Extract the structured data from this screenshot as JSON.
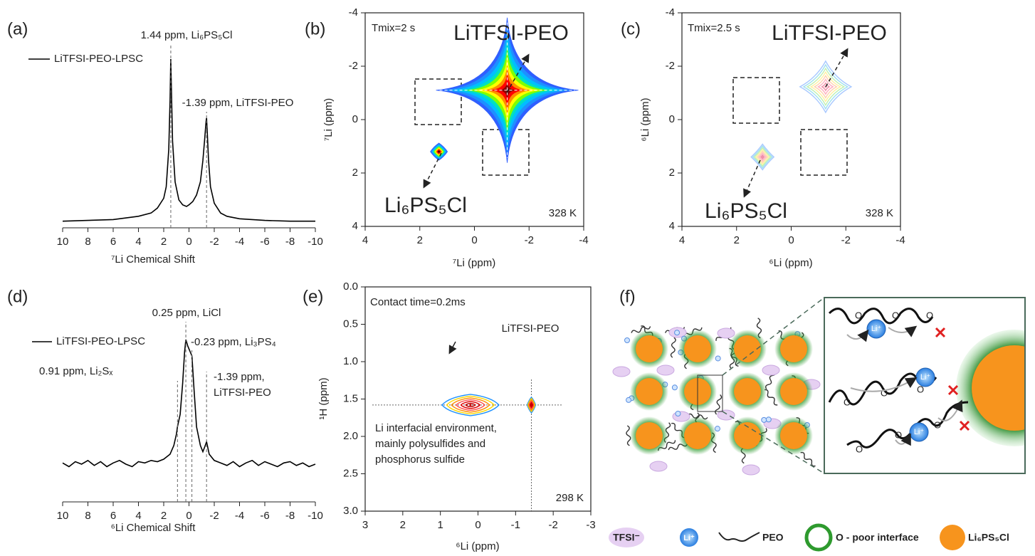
{
  "chart_data": [
    {
      "type": "spectrum",
      "label": "(a)",
      "xlabel": "⁷Li Chemical Shift",
      "xlim": [
        10,
        -10
      ],
      "xticks": [
        10,
        8,
        6,
        4,
        2,
        0,
        -2,
        -4,
        -6,
        -8,
        -10
      ],
      "x": [
        10,
        8,
        6,
        4,
        3,
        2.5,
        2,
        1.8,
        1.6,
        1.5,
        1.44,
        1.38,
        1.3,
        1.1,
        0.8,
        0.5,
        0.2,
        0,
        -0.3,
        -0.6,
        -0.9,
        -1.1,
        -1.25,
        -1.35,
        -1.39,
        -1.45,
        -1.55,
        -1.7,
        -2,
        -2.5,
        -3,
        -4,
        -6,
        -8,
        -10
      ],
      "series": [
        {
          "name": "LiTFSI-PEO-LPSC",
          "color": "#000000",
          "values": [
            1,
            1.5,
            2,
            4,
            6,
            9,
            15,
            22,
            45,
            75,
            100,
            78,
            50,
            25,
            14,
            11,
            10,
            11,
            13,
            17,
            25,
            38,
            52,
            62,
            64,
            55,
            38,
            22,
            12,
            6,
            4,
            2.5,
            1.5,
            1,
            1
          ]
        }
      ],
      "annotations": [
        {
          "x": 1.44,
          "text": "1.44 ppm, Li₆PS₅Cl"
        },
        {
          "x": -1.39,
          "text": "-1.39 ppm, LiTFSI-PEO"
        }
      ]
    },
    {
      "type": "contour",
      "label": "(b)",
      "xlabel": "⁷Li (ppm)",
      "ylabel": "⁷Li (ppm)",
      "xlim": [
        4,
        -4
      ],
      "ylim": [
        4,
        -4
      ],
      "xticks": [
        4,
        2,
        0,
        -2,
        -4
      ],
      "yticks": [
        -4,
        -2,
        0,
        2,
        4
      ],
      "filled": true,
      "colors": [
        "#2f5fff",
        "#1e90ff",
        "#00bfff",
        "#00e0c0",
        "#7fff00",
        "#ffff00",
        "#ff8c00",
        "#ff0000",
        "#8b0000"
      ],
      "notes": [
        "Tmix=2 s",
        "328 K"
      ],
      "series": [
        {
          "name": "LiTFSI-PEO",
          "x": [
            -1.2
          ],
          "values": [
            -1.1
          ]
        },
        {
          "name": "Li₆PS₅Cl",
          "x": [
            1.3
          ],
          "values": [
            1.2
          ]
        }
      ]
    },
    {
      "type": "contour",
      "label": "(c)",
      "xlabel": "⁶Li (ppm)",
      "ylabel": "⁶Li (ppm)",
      "xlim": [
        4,
        -4
      ],
      "ylim": [
        4,
        -4
      ],
      "xticks": [
        4,
        2,
        0,
        -2,
        -4
      ],
      "yticks": [
        -4,
        -2,
        0,
        2,
        4
      ],
      "filled": false,
      "colors": [
        "#a8c8ff",
        "#a0e0f0",
        "#c0f0b0",
        "#fff0a0",
        "#ffd0b0",
        "#ffb0c0",
        "#f090a8"
      ],
      "notes": [
        "Tmix=2.5 s",
        "328 K"
      ],
      "series": [
        {
          "name": "LiTFSI-PEO",
          "x": [
            -1.26
          ],
          "values": [
            -1.23
          ]
        },
        {
          "name": "Li₆PS₅Cl",
          "x": [
            1.05
          ],
          "values": [
            1.4
          ]
        }
      ]
    },
    {
      "type": "spectrum",
      "label": "(d)",
      "xlabel": "⁶Li Chemical Shift",
      "xlim": [
        10,
        -10
      ],
      "xticks": [
        10,
        8,
        6,
        4,
        2,
        0,
        -2,
        -4,
        -6,
        -8,
        -10
      ],
      "x": [
        10,
        9.5,
        9,
        8.5,
        8,
        7.5,
        7,
        6.5,
        6,
        5.5,
        5,
        4.5,
        4,
        3.5,
        3,
        2.5,
        2,
        1.5,
        1.2,
        1,
        0.91,
        0.7,
        0.5,
        0.35,
        0.25,
        0.1,
        -0.1,
        -0.23,
        -0.4,
        -0.6,
        -0.9,
        -1.1,
        -1.25,
        -1.39,
        -1.6,
        -2,
        -2.5,
        -3,
        -3.5,
        -4,
        -4.5,
        -5,
        -5.5,
        -6,
        -6.5,
        -7,
        -7.5,
        -8,
        -8.5,
        -9,
        -9.5,
        -10
      ],
      "series": [
        {
          "name": "LiTFSI-PEO-LPSC",
          "color": "#000000",
          "values": [
            1,
            -2,
            2,
            0,
            3,
            -1,
            2,
            -2,
            1,
            3,
            0,
            -2,
            2,
            1,
            3,
            2,
            4,
            8,
            15,
            24,
            30,
            40,
            65,
            90,
            100,
            95,
            90,
            87,
            60,
            30,
            15,
            10,
            14,
            18,
            8,
            3,
            1,
            -1,
            2,
            -2,
            1,
            3,
            -1,
            2,
            0,
            -2,
            1,
            2,
            -1,
            1,
            -2,
            0
          ]
        }
      ],
      "annotations": [
        {
          "x": 0.25,
          "text": "0.25 ppm, LiCl"
        },
        {
          "x": -0.23,
          "text": "-0.23 ppm, Li₃PS₄"
        },
        {
          "x": 0.91,
          "text": "0.91 ppm, Li₂Sₓ"
        },
        {
          "x": -1.39,
          "text": [
            "-1.39 ppm,",
            "LiTFSI-PEO"
          ]
        }
      ]
    },
    {
      "type": "contour",
      "label": "(e)",
      "xlabel": "⁶Li (ppm)",
      "ylabel": "¹H (ppm)",
      "xlim": [
        3,
        -3
      ],
      "ylim": [
        3,
        0
      ],
      "xticks": [
        3,
        2,
        1,
        0,
        -1,
        -2,
        -3
      ],
      "yticks": [
        {
          "value": 0,
          "label": "0.0"
        },
        0.5,
        {
          "value": 1,
          "label": "1.0"
        },
        1.5,
        {
          "value": 2,
          "label": "2.0"
        },
        2.5,
        {
          "value": 3,
          "label": "3.0"
        }
      ],
      "filled": false,
      "colors": [
        "#1e90ff",
        "#ffd700",
        "#ff8c00",
        "#ff5050",
        "#e00000",
        "#c00000"
      ],
      "notes": [
        "Contact time=0.2ms",
        "298 K"
      ],
      "annotation": [
        "Li interfacial environment,",
        "mainly polysulfides and",
        "phosphorus sulfide"
      ],
      "series": [
        {
          "name": "",
          "x": [
            0.2
          ],
          "values": [
            1.58
          ]
        },
        {
          "name": "LiTFSI-PEO",
          "x": [
            -1.42
          ],
          "values": [
            1.58
          ]
        }
      ]
    }
  ],
  "diagram": {
    "label": "(f)",
    "ion": "Li⁺",
    "oxygen": "O",
    "legend": [
      "TFSI⁻",
      "Li⁺",
      "PEO",
      "O - poor interface",
      "Li₆PS₅Cl"
    ]
  }
}
